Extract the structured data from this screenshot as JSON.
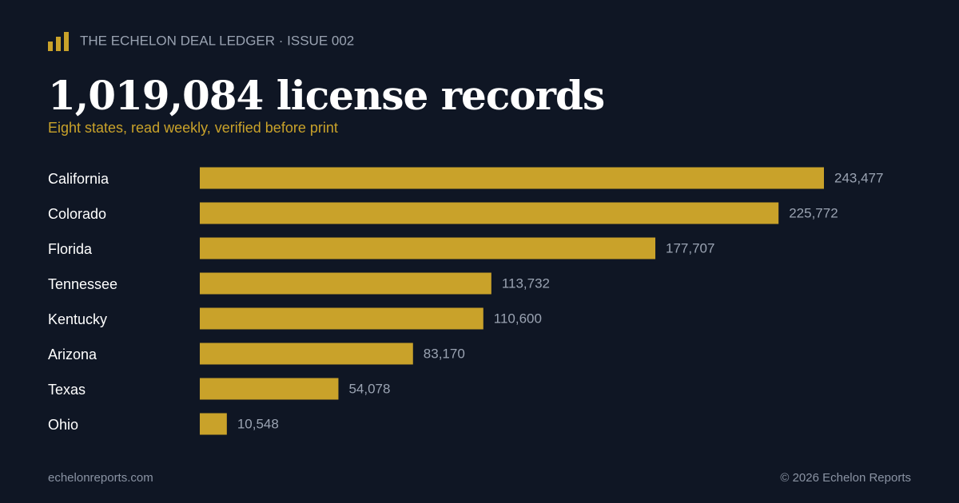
{
  "brand": "THE ECHELON DEAL LEDGER · ISSUE 002",
  "chart_data": {
    "type": "bar",
    "orientation": "horizontal",
    "title": "1,019,084 license records",
    "subtitle": "Eight states, read weekly, verified before print",
    "categories": [
      "California",
      "Colorado",
      "Florida",
      "Tennessee",
      "Kentucky",
      "Arizona",
      "Texas",
      "Ohio"
    ],
    "values": [
      243477,
      225772,
      177707,
      113732,
      110600,
      83170,
      54078,
      10548
    ],
    "value_labels": [
      "243,477",
      "225,772",
      "177,707",
      "113,732",
      "110,600",
      "83,170",
      "54,078",
      "10,548"
    ],
    "color": "#c9a22a"
  },
  "footer": {
    "site": "echelonreports.com",
    "copyright": "© 2026 Echelon Reports"
  }
}
